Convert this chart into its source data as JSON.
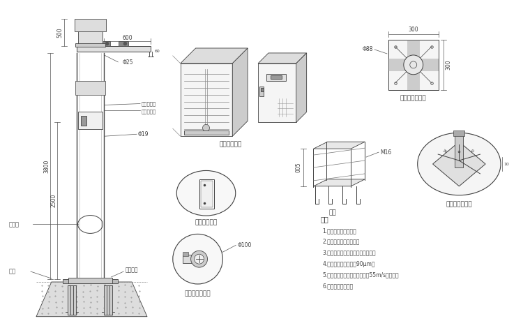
{
  "bg_color": "#ffffff",
  "line_color": "#404040",
  "gray1": "#888888",
  "gray2": "#aaaaaa",
  "gray3": "#cccccc",
  "labels": {
    "maintenance_hole": "维修孔",
    "ground_cage": "地笼",
    "base_flange": "底座法兰",
    "waterproof_box": "防水笱放大图",
    "maintenance_detail": "维修孔放大图",
    "flange_machine": "桥机法兰放大图",
    "base_flange_front": "底座法兰正视图",
    "ground_cage_label": "地笼",
    "base_flange_detail": "底座法兰放大图",
    "description_title": "说明",
    "desc1": "1.主干为国标镍锤管。",
    "desc2": "2.上下法兰加强抛连接。",
    "desc3": "3.喷涂后不再进行任何加工和焊接。",
    "desc4": "4.钉管层锹锌层常厚为90μm。",
    "desc5": "5.立杆、情管和其它部件应能抗55m/s的风速。",
    "desc6": "6.泥管、避雷采可折",
    "dim_500": "500",
    "dim_600": "600",
    "dim_3800": "3800",
    "dim_2500": "2500",
    "dim_phi25": "Φ25",
    "dim_phi19": "Φ19",
    "dim_phi88": "Φ88",
    "dim_phi100": "Φ100",
    "dim_M16": "M16",
    "dim_300": "300",
    "dim_005": "005",
    "upper_color": "上层了浅色",
    "lower_color": "下层烟灰色"
  }
}
